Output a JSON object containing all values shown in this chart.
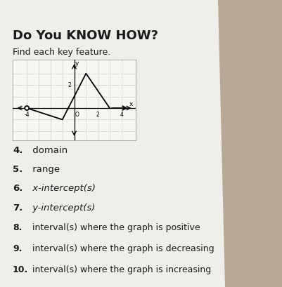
{
  "title": "Do You KNOW HOW?",
  "subtitle": "Find each key feature.",
  "desk_color": "#b8a898",
  "paper_color": "#f0eeeb",
  "paper_shadow": "#d0ccc8",
  "graph": {
    "xlim": [
      -5.2,
      5.2
    ],
    "ylim": [
      -2.8,
      4.2
    ],
    "line_x": [
      -4,
      -1,
      1,
      3
    ],
    "line_y": [
      0,
      -1,
      3,
      0
    ],
    "open_circle": [
      -4,
      0
    ]
  },
  "items": [
    [
      "4.",
      " domain"
    ],
    [
      "5.",
      " range"
    ],
    [
      "6.",
      " x-intercept(s)"
    ],
    [
      "7.",
      " y-intercept(s)"
    ],
    [
      "8.",
      " interval(s) where the graph is positive"
    ],
    [
      "9.",
      " interval(s) where the graph is decreasing"
    ],
    [
      "10.",
      " interval(s) where the graph is increasing"
    ]
  ],
  "item_bold": [
    true,
    true,
    true,
    true,
    false,
    false,
    false
  ],
  "num_bold": [
    true,
    true,
    true,
    true,
    true,
    true,
    true
  ]
}
